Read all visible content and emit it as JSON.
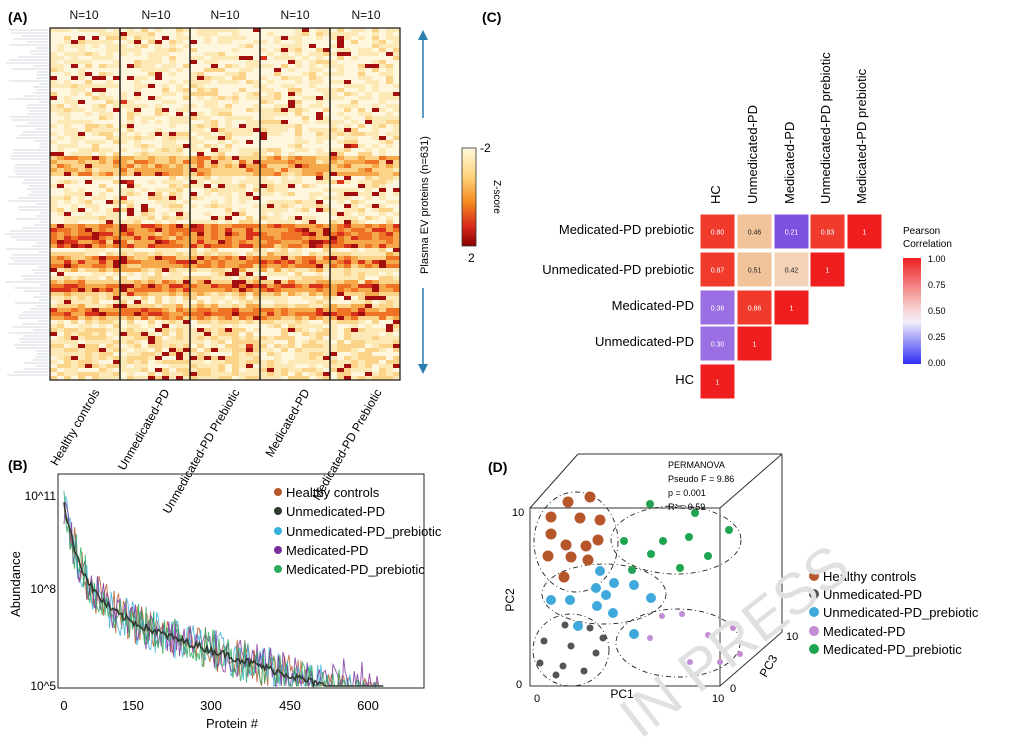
{
  "watermark": "IN PRESS",
  "chart_data": [
    {
      "panel": "(A)",
      "type": "heatmap",
      "group_counts": [
        "N=10",
        "N=10",
        "N=10",
        "N=10",
        "N=10"
      ],
      "groups": [
        "Healthy controls",
        "Unmedicated-PD",
        "Unmedicated-PD Prebiotic",
        "Medicated-PD",
        "Medicated-PD Prebiotic"
      ],
      "row_label": "Plasma EV proteins (n=631)",
      "colorbar": {
        "label": "Z-score",
        "ticks": [
          "-2",
          "2"
        ],
        "colors": [
          "#fff8dc",
          "#ffd27a",
          "#f58a1f",
          "#d8281c",
          "#8b0000"
        ]
      }
    },
    {
      "panel": "(B)",
      "type": "line",
      "xlabel": "Protein #",
      "ylabel": "Abundance",
      "x_ticks": [
        "0",
        "150",
        "300",
        "450",
        "600"
      ],
      "y_ticks": [
        "10^11",
        "10^8",
        "10^5"
      ],
      "series": [
        {
          "name": "Healthy controls",
          "color": "#b5562b"
        },
        {
          "name": "Unmedicated-PD",
          "color": "#2f3b2f"
        },
        {
          "name": "Unmedicated-PD_prebiotic",
          "color": "#38b1d8"
        },
        {
          "name": "Medicated-PD",
          "color": "#7a2f9b"
        },
        {
          "name": "Medicated-PD_prebiotic",
          "color": "#2eaa5e"
        }
      ]
    },
    {
      "panel": "(C)",
      "type": "heatmap",
      "labels": [
        "HC",
        "Unmedicated-PD",
        "Medicated-PD",
        "Unmedicated-PD prebiotic",
        "Medicated-PD prebiotic"
      ],
      "matrix_rows": [
        {
          "row": "Medicated-PD prebiotic",
          "cells": [
            "0.80",
            "0.46",
            "0.21",
            "0.83",
            "1"
          ]
        },
        {
          "row": "Unmedicated-PD prebiotic",
          "cells": [
            "0.87",
            "0.51",
            "0.42",
            "1"
          ]
        },
        {
          "row": "Medicated-PD",
          "cells": [
            "0.36",
            "0.86",
            "1"
          ]
        },
        {
          "row": "Unmedicated-PD",
          "cells": [
            "0.30",
            "1"
          ]
        },
        {
          "row": "HC",
          "cells": [
            "1"
          ]
        }
      ],
      "colorbar": {
        "title_line1": "Pearson",
        "title_line2": "Correlation",
        "ticks": [
          "1.00",
          "0.75",
          "0.50",
          "0.25",
          "0.00"
        ]
      }
    },
    {
      "panel": "(D)",
      "type": "scatter",
      "xlabel": "PC1",
      "ylabel": "PC2",
      "zlabel": "PC3",
      "axis_ticks": {
        "x": [
          "0",
          "10"
        ],
        "y": [
          "0",
          "10"
        ],
        "z": [
          "0",
          "10"
        ]
      },
      "stats": [
        "PERMANOVA",
        "Pseudo F = 9.86",
        "p = 0.001",
        "R² = 0.59"
      ],
      "series": [
        {
          "name": "Healthy controls",
          "color": "#b5562b"
        },
        {
          "name": "Unmedicated-PD",
          "color": "#555555"
        },
        {
          "name": "Unmedicated-PD_prebiotic",
          "color": "#3fa9db"
        },
        {
          "name": "Medicated-PD",
          "color": "#c58ad4"
        },
        {
          "name": "Medicated-PD_prebiotic",
          "color": "#1fa552"
        }
      ]
    }
  ]
}
